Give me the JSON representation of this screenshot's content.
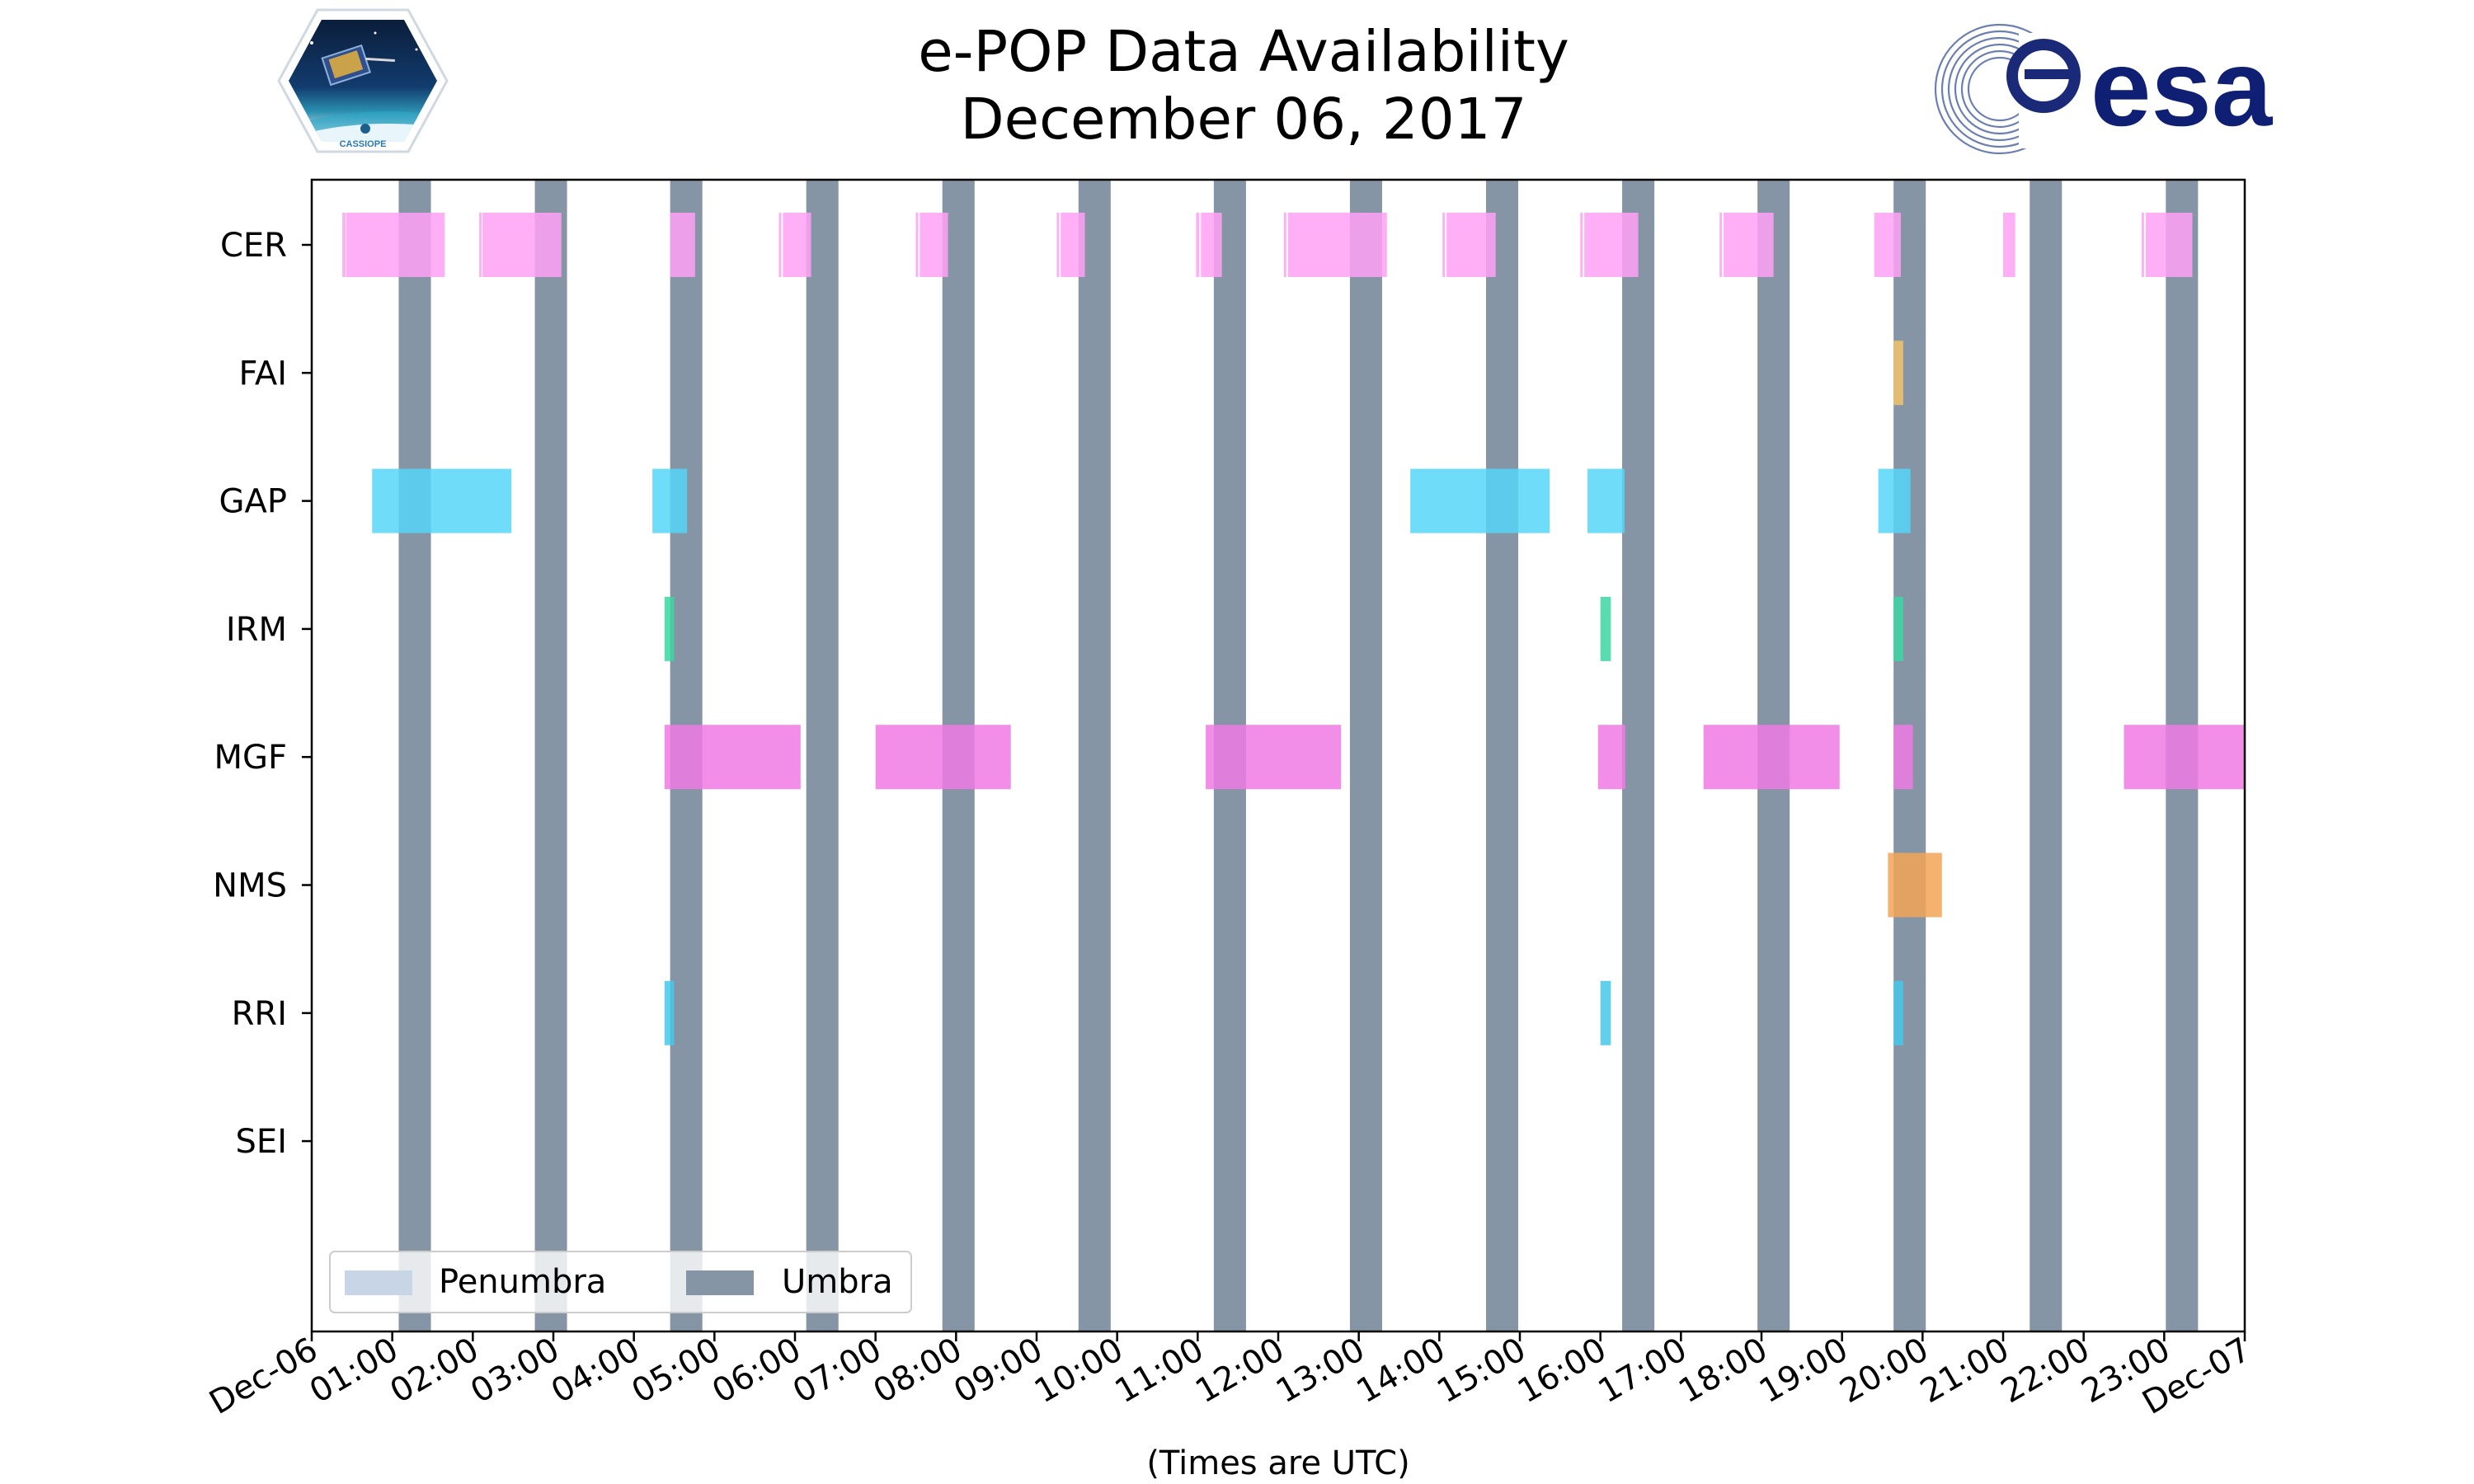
{
  "chart_data": {
    "type": "timeline",
    "title": "e-POP Data Availability",
    "subtitle": "December 06, 2017",
    "xlabel": "(Times are UTC)",
    "x_unit": "hours UTC",
    "xlim": [
      0,
      24
    ],
    "x_ticks": [
      {
        "h": 0,
        "label": "Dec-06"
      },
      {
        "h": 1,
        "label": "01:00"
      },
      {
        "h": 2,
        "label": "02:00"
      },
      {
        "h": 3,
        "label": "03:00"
      },
      {
        "h": 4,
        "label": "04:00"
      },
      {
        "h": 5,
        "label": "05:00"
      },
      {
        "h": 6,
        "label": "06:00"
      },
      {
        "h": 7,
        "label": "07:00"
      },
      {
        "h": 8,
        "label": "08:00"
      },
      {
        "h": 9,
        "label": "09:00"
      },
      {
        "h": 10,
        "label": "10:00"
      },
      {
        "h": 11,
        "label": "11:00"
      },
      {
        "h": 12,
        "label": "12:00"
      },
      {
        "h": 13,
        "label": "13:00"
      },
      {
        "h": 14,
        "label": "14:00"
      },
      {
        "h": 15,
        "label": "15:00"
      },
      {
        "h": 16,
        "label": "16:00"
      },
      {
        "h": 17,
        "label": "17:00"
      },
      {
        "h": 18,
        "label": "18:00"
      },
      {
        "h": 19,
        "label": "19:00"
      },
      {
        "h": 20,
        "label": "20:00"
      },
      {
        "h": 21,
        "label": "21:00"
      },
      {
        "h": 22,
        "label": "22:00"
      },
      {
        "h": 23,
        "label": "23:00"
      },
      {
        "h": 24,
        "label": "Dec-07"
      }
    ],
    "instruments": [
      "CER",
      "FAI",
      "GAP",
      "IRM",
      "MGF",
      "NMS",
      "RRI",
      "SEI"
    ],
    "umbra": [
      [
        1.08,
        1.48
      ],
      [
        2.77,
        3.17
      ],
      [
        4.45,
        4.85
      ],
      [
        6.14,
        6.54
      ],
      [
        7.83,
        8.23
      ],
      [
        9.52,
        9.92
      ],
      [
        11.2,
        11.6
      ],
      [
        12.89,
        13.29
      ],
      [
        14.58,
        14.98
      ],
      [
        16.27,
        16.67
      ],
      [
        17.95,
        18.35
      ],
      [
        19.64,
        20.04
      ],
      [
        21.33,
        21.73
      ],
      [
        23.02,
        23.42
      ]
    ],
    "series": [
      {
        "name": "CER",
        "color": "#ffa1f4",
        "intervals": [
          [
            0.38,
            0.42
          ],
          [
            0.43,
            1.65
          ],
          [
            2.08,
            2.11
          ],
          [
            2.12,
            3.1
          ],
          [
            4.45,
            4.76
          ],
          [
            5.8,
            5.83
          ],
          [
            5.85,
            6.2
          ],
          [
            7.5,
            7.53
          ],
          [
            7.55,
            7.9
          ],
          [
            9.25,
            9.28
          ],
          [
            9.3,
            9.6
          ],
          [
            10.98,
            11.02
          ],
          [
            11.04,
            11.3
          ],
          [
            12.07,
            12.1
          ],
          [
            12.12,
            13.35
          ],
          [
            14.04,
            14.07
          ],
          [
            14.09,
            14.7
          ],
          [
            15.75,
            15.78
          ],
          [
            15.8,
            16.47
          ],
          [
            17.48,
            17.51
          ],
          [
            17.53,
            18.15
          ],
          [
            19.4,
            19.73
          ],
          [
            21.0,
            21.15
          ],
          [
            22.72,
            22.75
          ],
          [
            22.77,
            23.35
          ]
        ]
      },
      {
        "name": "FAI",
        "color": "#f2c36b",
        "intervals": [
          [
            19.64,
            19.76
          ]
        ]
      },
      {
        "name": "GAP",
        "color": "#56d6f8",
        "intervals": [
          [
            0.75,
            2.48
          ],
          [
            4.23,
            4.66
          ],
          [
            13.64,
            15.37
          ],
          [
            15.84,
            16.3
          ],
          [
            19.45,
            19.85
          ]
        ]
      },
      {
        "name": "IRM",
        "color": "#3dd6a3",
        "intervals": [
          [
            4.38,
            4.5
          ],
          [
            16.0,
            16.13
          ],
          [
            19.64,
            19.76
          ]
        ]
      },
      {
        "name": "MGF",
        "color": "#f07ae4",
        "intervals": [
          [
            4.38,
            6.07
          ],
          [
            7.0,
            8.68
          ],
          [
            11.1,
            12.78
          ],
          [
            15.97,
            16.31
          ],
          [
            17.28,
            18.97
          ],
          [
            19.64,
            19.88
          ],
          [
            22.5,
            24.0
          ]
        ]
      },
      {
        "name": "NMS",
        "color": "#f2a455",
        "intervals": [
          [
            19.57,
            20.24
          ]
        ]
      },
      {
        "name": "RRI",
        "color": "#45c8ea",
        "intervals": [
          [
            4.38,
            4.5
          ],
          [
            16.0,
            16.13
          ],
          [
            19.64,
            19.76
          ]
        ]
      },
      {
        "name": "SEI",
        "color": "#aaaaaa",
        "intervals": []
      }
    ],
    "legend": {
      "position": "bottom-left",
      "entries": [
        {
          "label": "Penumbra",
          "color": "#c8d5e6"
        },
        {
          "label": "Umbra",
          "color": "#8595a6"
        }
      ]
    },
    "colors": {
      "umbra": "#8595a6",
      "penumbra": "#c8d5e6",
      "axis": "#000000"
    }
  },
  "logos": {
    "left": {
      "label": "CASSIOPE"
    },
    "right": {
      "label": "esa"
    }
  }
}
